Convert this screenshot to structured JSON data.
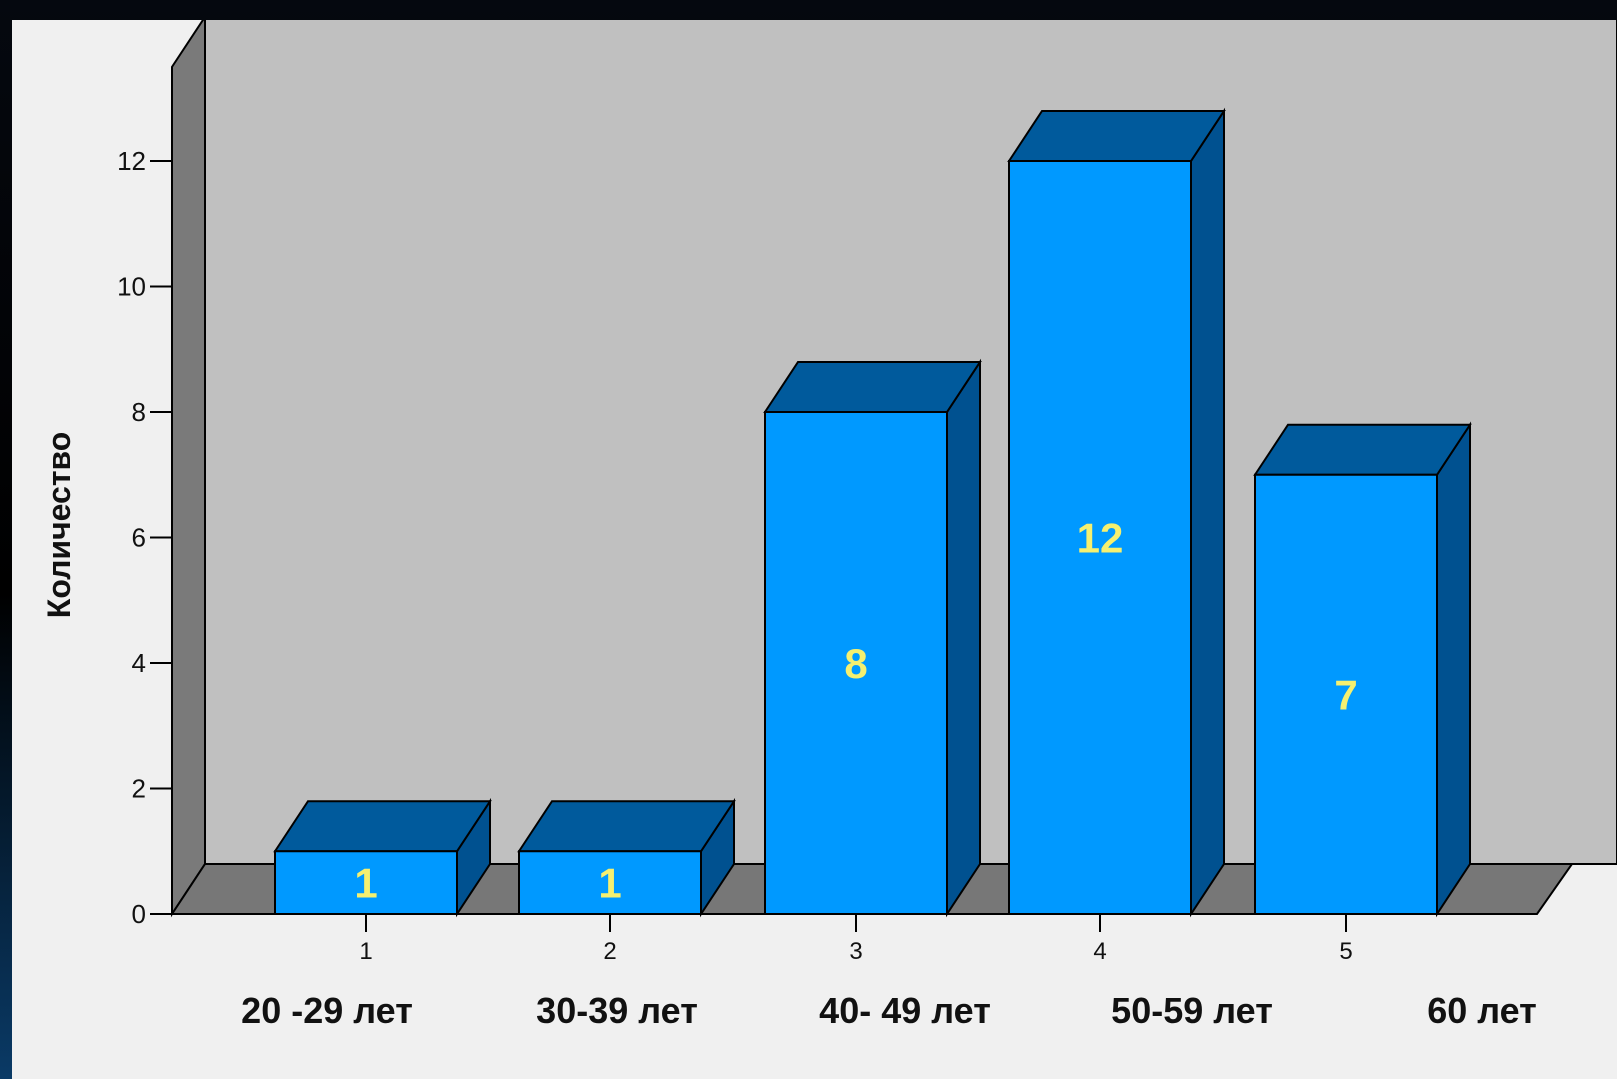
{
  "chart_data": {
    "type": "bar",
    "categories": [
      "1",
      "2",
      "3",
      "4",
      "5"
    ],
    "values": [
      1,
      1,
      8,
      12,
      7
    ],
    "data_labels": [
      "1",
      "1",
      "8",
      "12",
      "7"
    ],
    "group_labels": [
      "20 -29 лет",
      "30-39 лет",
      "40- 49 лет",
      "50-59 лет",
      "60 лет"
    ],
    "ylabel": "Количество",
    "yticks": [
      "0",
      "2",
      "4",
      "6",
      "8",
      "10",
      "12"
    ],
    "ylim": [
      0,
      13.5
    ],
    "style": "3d",
    "colors": {
      "bar_front": "#0099ff",
      "bar_top": "#005a9c",
      "bar_side": "#005190",
      "back_wall": "#c0c0c0",
      "side_wall": "#7a7a7a",
      "floor": "#777777",
      "value_label": "#f5f070"
    }
  }
}
